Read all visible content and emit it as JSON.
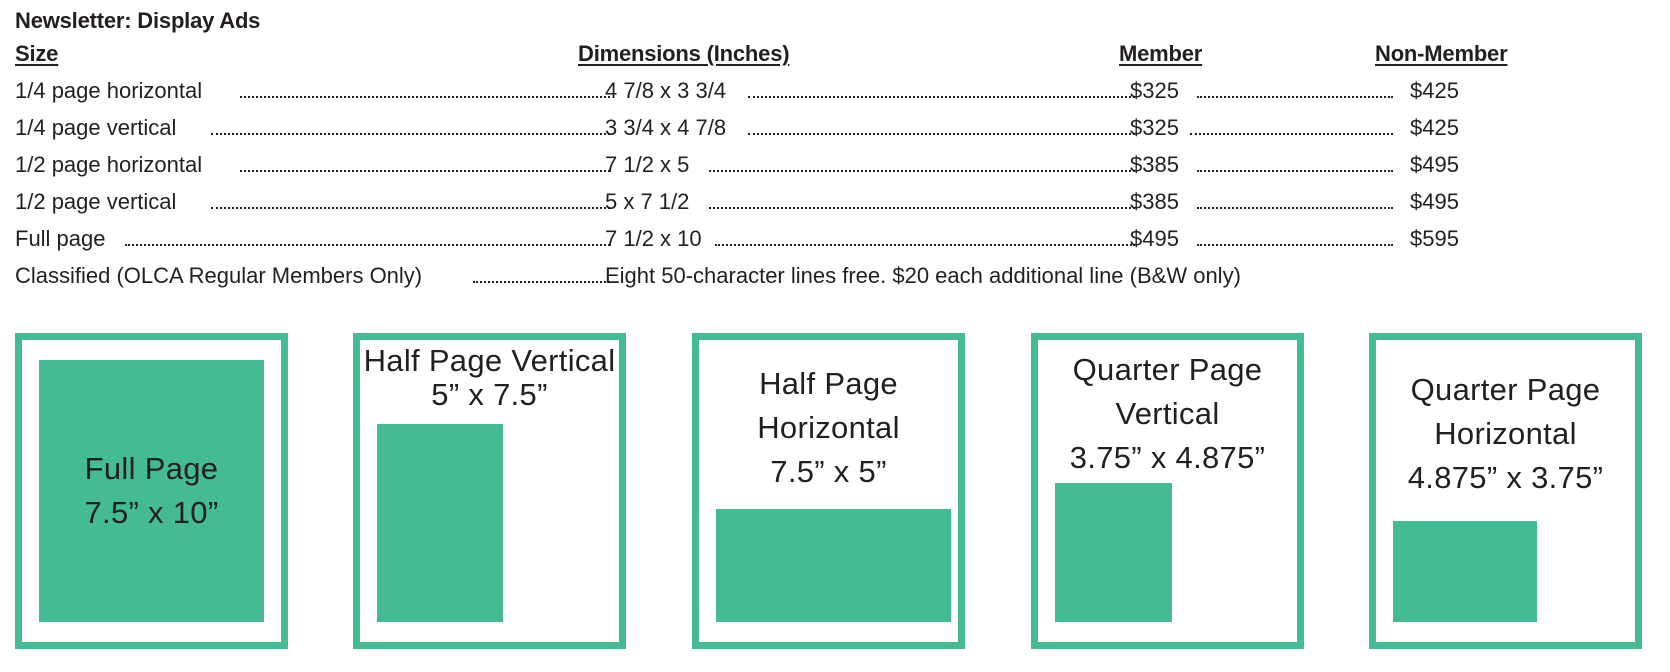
{
  "title": "Newsletter: Display Ads",
  "headers": {
    "size": "Size",
    "dimensions": "Dimensions (Inches)",
    "member": "Member",
    "nonmember": "Non-Member"
  },
  "rows": [
    {
      "size": "1/4 page horizontal",
      "dimensions": "4 7/8 x 3 3/4",
      "member": "$325",
      "nonmember": "$425"
    },
    {
      "size": "1/4 page vertical",
      "dimensions": "3 3/4 x 4 7/8",
      "member": "$325",
      "nonmember": "$425"
    },
    {
      "size": "1/2 page horizontal",
      "dimensions": "7 1/2 x 5",
      "member": "$385",
      "nonmember": "$495"
    },
    {
      "size": "1/2 page vertical",
      "dimensions": "5 x 7 1/2",
      "member": "$385",
      "nonmember": "$495"
    },
    {
      "size": "Full page",
      "dimensions": "7 1/2 x 10",
      "member": "$495",
      "nonmember": "$595"
    }
  ],
  "classified": {
    "size": "Classified  (OLCA Regular Members Only)",
    "note": "Eight 50-character lines free. $20 each additional line (B&W only)"
  },
  "panels": [
    {
      "name": "Full Page",
      "size": "7.5” x 10”"
    },
    {
      "name": "Half Page Vertical",
      "size": "5” x 7.5”"
    },
    {
      "name1": "Half Page",
      "name2": "Horizontal",
      "size": "7.5” x 5”"
    },
    {
      "name1": "Quarter Page",
      "name2": "Vertical",
      "size": "3.75” x 4.875”"
    },
    {
      "name1": "Quarter Page",
      "name2": "Horizontal",
      "size": "4.875” x 3.75”"
    }
  ],
  "colors": {
    "accent": "#45bb93",
    "text": "#231f20"
  }
}
